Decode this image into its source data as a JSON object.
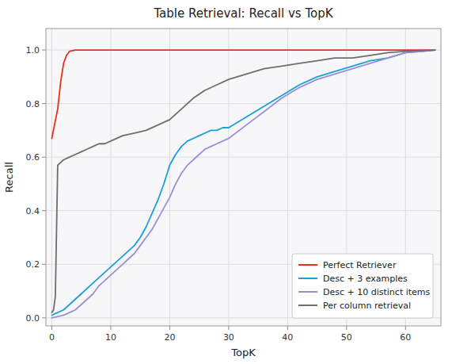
{
  "chart_data": {
    "type": "line",
    "title": "Table Retrieval: Recall vs TopK",
    "x_label": "TopK",
    "y_label": "Recall",
    "xlim": [
      -1,
      66
    ],
    "ylim": [
      -0.03,
      1.08
    ],
    "xticks": [
      0,
      10,
      20,
      30,
      40,
      50,
      60
    ],
    "yticks": [
      {
        "value": 0.0,
        "label": "0.0"
      },
      0.2,
      0.4,
      0.6,
      0.8,
      {
        "value": 1.0,
        "label": "1.0"
      }
    ],
    "grid": true,
    "legend": "lower right",
    "series": [
      {
        "name": "Perfect Retriever",
        "color": "#e8301a",
        "x": [
          0,
          1,
          1.5,
          2,
          2.5,
          3,
          4,
          5,
          65
        ],
        "values": [
          0.67,
          0.78,
          0.88,
          0.95,
          0.98,
          0.995,
          1.0,
          1.0,
          1.0
        ]
      },
      {
        "name": "Desc + 3 examples",
        "color": "#1b9fd4",
        "x": [
          0,
          1,
          2,
          3,
          4,
          5,
          6,
          7,
          8,
          9,
          10,
          11,
          12,
          13,
          14,
          15,
          16,
          17,
          18,
          19,
          20,
          21,
          22,
          23,
          24,
          25,
          26,
          27,
          28,
          29,
          30,
          33,
          36,
          39,
          42,
          45,
          48,
          51,
          54,
          57,
          60,
          63,
          65
        ],
        "values": [
          0.01,
          0.02,
          0.03,
          0.05,
          0.07,
          0.09,
          0.11,
          0.13,
          0.15,
          0.17,
          0.19,
          0.21,
          0.23,
          0.25,
          0.27,
          0.3,
          0.34,
          0.39,
          0.44,
          0.5,
          0.57,
          0.61,
          0.64,
          0.66,
          0.67,
          0.68,
          0.69,
          0.7,
          0.7,
          0.71,
          0.71,
          0.75,
          0.79,
          0.83,
          0.87,
          0.9,
          0.92,
          0.94,
          0.96,
          0.97,
          0.99,
          0.995,
          1.0
        ]
      },
      {
        "name": "Desc + 10 distinct items",
        "color": "#9b8fd4",
        "x": [
          0,
          1,
          2,
          3,
          4,
          5,
          6,
          7,
          8,
          9,
          10,
          11,
          12,
          13,
          14,
          15,
          16,
          17,
          18,
          19,
          20,
          21,
          22,
          23,
          24,
          25,
          26,
          27,
          28,
          29,
          30,
          33,
          36,
          39,
          42,
          45,
          48,
          51,
          54,
          57,
          60,
          63,
          65
        ],
        "values": [
          0.0,
          0.005,
          0.01,
          0.02,
          0.03,
          0.05,
          0.07,
          0.09,
          0.12,
          0.14,
          0.16,
          0.18,
          0.2,
          0.22,
          0.24,
          0.27,
          0.3,
          0.33,
          0.37,
          0.41,
          0.45,
          0.5,
          0.54,
          0.57,
          0.59,
          0.61,
          0.63,
          0.64,
          0.65,
          0.66,
          0.67,
          0.72,
          0.77,
          0.82,
          0.86,
          0.89,
          0.91,
          0.93,
          0.95,
          0.97,
          0.99,
          0.995,
          1.0
        ]
      },
      {
        "name": "Per column retrieval",
        "color": "#6e6e6e",
        "x": [
          0,
          0.3,
          0.6,
          1.0,
          1.5,
          2,
          3,
          4,
          5,
          6,
          7,
          8,
          9,
          10,
          12,
          14,
          16,
          18,
          20,
          22,
          24,
          26,
          28,
          30,
          33,
          36,
          39,
          42,
          45,
          48,
          51,
          54,
          57,
          60,
          63,
          65
        ],
        "values": [
          0.02,
          0.03,
          0.08,
          0.57,
          0.58,
          0.59,
          0.6,
          0.61,
          0.62,
          0.63,
          0.64,
          0.65,
          0.65,
          0.66,
          0.68,
          0.69,
          0.7,
          0.72,
          0.74,
          0.78,
          0.82,
          0.85,
          0.87,
          0.89,
          0.91,
          0.93,
          0.94,
          0.95,
          0.96,
          0.97,
          0.97,
          0.98,
          0.99,
          0.995,
          0.998,
          1.0
        ]
      }
    ]
  }
}
